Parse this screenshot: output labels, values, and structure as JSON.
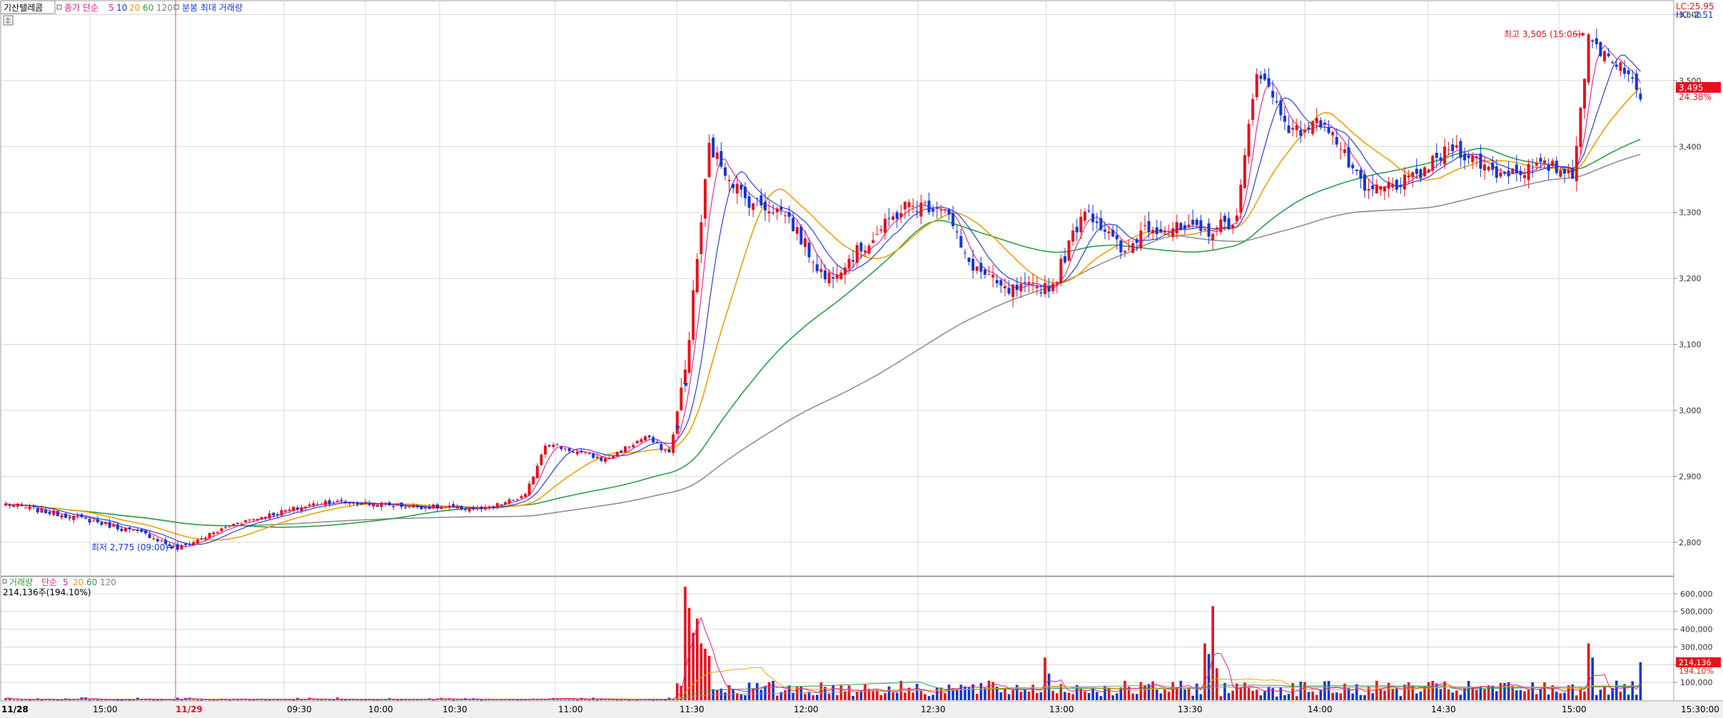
{
  "header": {
    "title": "기산텔레콤",
    "indicator_label": "종가 단순",
    "ma_periods": [
      "5",
      "10",
      "20",
      "60",
      "120"
    ],
    "ma_colors": [
      "#e0208c",
      "#1e2fd6",
      "#f0a000",
      "#2aa04a",
      "#808080"
    ],
    "minute_label": "분봉 최대 거래량",
    "lc": "LC:25.95",
    "hc": "HC:-2.51"
  },
  "volume_header": {
    "title": "거래량",
    "indicator_label": "단순",
    "ma_periods": [
      "5",
      "20",
      "60",
      "120"
    ],
    "value": "214,136주(194.10%)"
  },
  "annotations": {
    "low": "최저 2,775 (09:00)",
    "high": "최고 3,505 (15:06)"
  },
  "price_tags": {
    "current": "3,495",
    "change_pct": "24.38%"
  },
  "volume_tags": {
    "current": "214,136",
    "pct": "194.10%"
  },
  "colors": {
    "up": "#e8121c",
    "down": "#1336d8",
    "grid": "#d8d8d8",
    "session_line": "#ff4040"
  },
  "chart_data": {
    "type": "candlestick",
    "price_axis": {
      "ticks": [
        "3,600",
        "3,500",
        "3,400",
        "3,300",
        "3,200",
        "3,100",
        "3,000",
        "2,900",
        "2,800"
      ],
      "ylim": [
        2750,
        3620
      ]
    },
    "volume_axis": {
      "ticks": [
        "600,000",
        "500,000",
        "400,000",
        "300,000",
        "200,000",
        "100,000"
      ],
      "ylim": [
        0,
        680000
      ]
    },
    "time_labels": [
      "11/28",
      "15:00",
      "11/29",
      "09:30",
      "10:00",
      "10:30",
      "11:00",
      "11:30",
      "12:00",
      "12:30",
      "13:00",
      "13:30",
      "14:00",
      "14:30",
      "15:00",
      "15:30:00"
    ],
    "anchors": [
      {
        "t": 0,
        "p": 2858
      },
      {
        "t": 20,
        "p": 2835
      },
      {
        "t": 36,
        "p": 2810
      },
      {
        "t": 43,
        "p": 2790
      },
      {
        "t": 58,
        "p": 2830
      },
      {
        "t": 80,
        "p": 2862
      },
      {
        "t": 100,
        "p": 2855
      },
      {
        "t": 120,
        "p": 2850
      },
      {
        "t": 130,
        "p": 2870
      },
      {
        "t": 135,
        "p": 2950
      },
      {
        "t": 150,
        "p": 2925
      },
      {
        "t": 160,
        "p": 2960
      },
      {
        "t": 166,
        "p": 2935
      },
      {
        "t": 170,
        "p": 3060
      },
      {
        "t": 176,
        "p": 3400
      },
      {
        "t": 185,
        "p": 3320
      },
      {
        "t": 195,
        "p": 3300
      },
      {
        "t": 205,
        "p": 3200
      },
      {
        "t": 215,
        "p": 3250
      },
      {
        "t": 225,
        "p": 3310
      },
      {
        "t": 235,
        "p": 3310
      },
      {
        "t": 240,
        "p": 3230
      },
      {
        "t": 250,
        "p": 3180
      },
      {
        "t": 262,
        "p": 3190
      },
      {
        "t": 270,
        "p": 3310
      },
      {
        "t": 280,
        "p": 3235
      },
      {
        "t": 285,
        "p": 3280
      },
      {
        "t": 300,
        "p": 3270
      },
      {
        "t": 308,
        "p": 3290
      },
      {
        "t": 313,
        "p": 3520
      },
      {
        "t": 322,
        "p": 3420
      },
      {
        "t": 330,
        "p": 3440
      },
      {
        "t": 340,
        "p": 3330
      },
      {
        "t": 352,
        "p": 3350
      },
      {
        "t": 362,
        "p": 3400
      },
      {
        "t": 373,
        "p": 3360
      },
      {
        "t": 386,
        "p": 3370
      },
      {
        "t": 392,
        "p": 3360
      },
      {
        "t": 396,
        "p": 3560
      },
      {
        "t": 405,
        "p": 3520
      },
      {
        "t": 409,
        "p": 3470
      }
    ],
    "volume_spikes": [
      {
        "t": 170,
        "v": 640000
      },
      {
        "t": 171,
        "v": 520000
      },
      {
        "t": 172,
        "v": 380000
      },
      {
        "t": 173,
        "v": 460000
      },
      {
        "t": 174,
        "v": 320000
      },
      {
        "t": 175,
        "v": 290000
      },
      {
        "t": 176,
        "v": 250000
      },
      {
        "t": 260,
        "v": 240000
      },
      {
        "t": 261,
        "v": 150000
      },
      {
        "t": 300,
        "v": 320000
      },
      {
        "t": 302,
        "v": 530000
      },
      {
        "t": 301,
        "v": 260000
      },
      {
        "t": 303,
        "v": 180000
      },
      {
        "t": 396,
        "v": 320000
      },
      {
        "t": 397,
        "v": 240000
      },
      {
        "t": 409,
        "v": 214136
      }
    ],
    "low": {
      "value": 2775,
      "time": "09:00"
    },
    "high": {
      "value": 3505,
      "time": "15:06"
    }
  }
}
